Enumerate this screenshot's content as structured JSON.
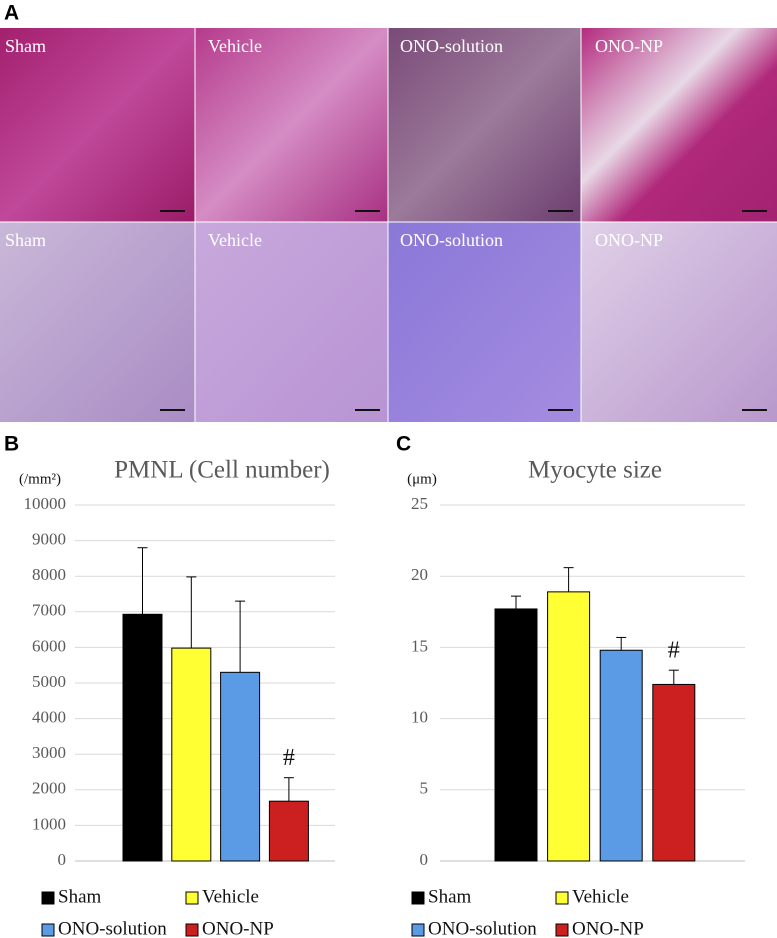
{
  "panel_labels": [
    "A",
    "B",
    "C"
  ],
  "images": {
    "rows": [
      [
        "Sham",
        "Vehicle",
        "ONO-solution",
        "ONO-NP"
      ],
      [
        "Sham",
        "Vehicle",
        "ONO-solution",
        "ONO-NP"
      ]
    ]
  },
  "chart_data": [
    {
      "type": "bar",
      "title": "PMNL (Cell number)",
      "y_label": "(/mm²)",
      "categories": [
        "Sham",
        "Vehicle",
        "ONO-solution",
        "ONO-NP"
      ],
      "values": [
        6930,
        5980,
        5300,
        1680
      ],
      "errors": [
        1870,
        2000,
        2000,
        660
      ],
      "colors": [
        "#000000",
        "#ffff33",
        "#5b9be6",
        "#cc1f1f"
      ],
      "annotations": [
        {
          "text": "#",
          "category": "ONO-NP"
        }
      ],
      "ylim": [
        0,
        10000
      ],
      "yticks": [
        0,
        1000,
        2000,
        3000,
        4000,
        5000,
        6000,
        7000,
        8000,
        9000,
        10000
      ],
      "grid": true
    },
    {
      "type": "bar",
      "title": "Myocyte size",
      "y_label": "(μm)",
      "categories": [
        "Sham",
        "Vehicle",
        "ONO-solution",
        "ONO-NP"
      ],
      "values": [
        17.7,
        18.9,
        14.8,
        12.4
      ],
      "errors": [
        0.9,
        1.7,
        0.9,
        1.0
      ],
      "colors": [
        "#000000",
        "#ffff33",
        "#5b9be6",
        "#cc1f1f"
      ],
      "annotations": [
        {
          "text": "#",
          "category": "ONO-NP"
        }
      ],
      "ylim": [
        0,
        25
      ],
      "yticks": [
        0,
        5,
        10,
        15,
        20,
        25
      ],
      "grid": true
    }
  ]
}
